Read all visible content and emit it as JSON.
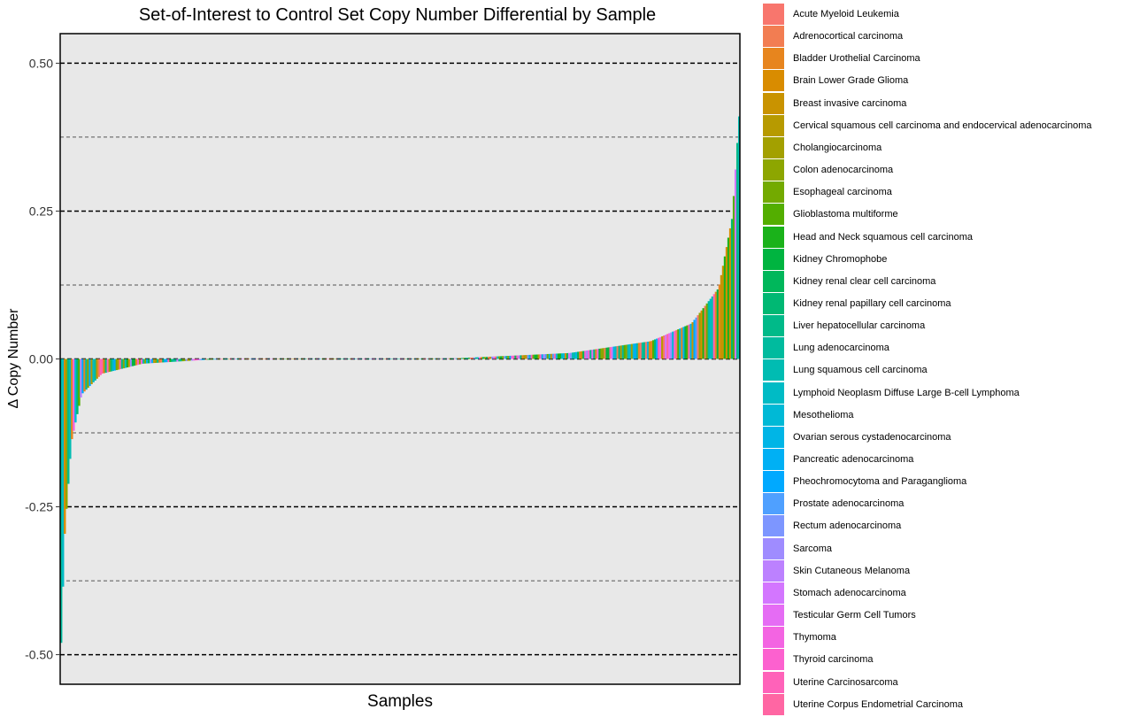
{
  "chart_data": {
    "type": "bar",
    "title": "Set-of-Interest to Control Set Copy Number Differential by Sample",
    "xlabel": "Samples",
    "ylabel": "Δ Copy Number",
    "ylim": [
      -0.55,
      0.55
    ],
    "y_ticks": [
      {
        "value": 0.5,
        "label": "0.50"
      },
      {
        "value": 0.25,
        "label": "0.25"
      },
      {
        "value": 0.0,
        "label": "0.00"
      },
      {
        "value": -0.25,
        "label": "-0.25"
      },
      {
        "value": -0.5,
        "label": "-0.50"
      }
    ],
    "major_reference_lines": [
      0.5,
      0.25,
      0.0,
      -0.25,
      -0.5
    ],
    "minor_reference_lines": [
      0.375,
      0.125,
      -0.125,
      -0.375
    ],
    "x_tick_labels": "none",
    "legend_placement": "right",
    "sample_count": 380,
    "sorted": "ascending",
    "curve_points": [
      {
        "rank_fraction": 0.0,
        "value": -0.48
      },
      {
        "rank_fraction": 0.005,
        "value": -0.3
      },
      {
        "rank_fraction": 0.015,
        "value": -0.14
      },
      {
        "rank_fraction": 0.03,
        "value": -0.06
      },
      {
        "rank_fraction": 0.06,
        "value": -0.025
      },
      {
        "rank_fraction": 0.12,
        "value": -0.008
      },
      {
        "rank_fraction": 0.22,
        "value": -0.001
      },
      {
        "rank_fraction": 0.58,
        "value": 0.001
      },
      {
        "rank_fraction": 0.75,
        "value": 0.01
      },
      {
        "rank_fraction": 0.87,
        "value": 0.03
      },
      {
        "rank_fraction": 0.93,
        "value": 0.06
      },
      {
        "rank_fraction": 0.97,
        "value": 0.12
      },
      {
        "rank_fraction": 0.99,
        "value": 0.24
      },
      {
        "rank_fraction": 1.0,
        "value": 0.41
      }
    ],
    "legend": [
      {
        "name": "Acute Myeloid Leukemia",
        "color": "#F8766D"
      },
      {
        "name": "Adrenocortical carcinoma",
        "color": "#F27D52"
      },
      {
        "name": "Bladder Urothelial Carcinoma",
        "color": "#E7851E"
      },
      {
        "name": "Brain Lower Grade Glioma",
        "color": "#D98C00"
      },
      {
        "name": "Breast invasive carcinoma",
        "color": "#C99300"
      },
      {
        "name": "Cervical squamous cell carcinoma and endocervical adenocarcinoma",
        "color": "#B79A00"
      },
      {
        "name": "Cholangiocarcinoma",
        "color": "#A3A000"
      },
      {
        "name": "Colon adenocarcinoma",
        "color": "#8DA600"
      },
      {
        "name": "Esophageal carcinoma",
        "color": "#73AA00"
      },
      {
        "name": "Glioblastoma multiforme",
        "color": "#53AE00"
      },
      {
        "name": "Head and Neck squamous cell carcinoma",
        "color": "#1AB21A"
      },
      {
        "name": "Kidney Chromophobe",
        "color": "#00B440"
      },
      {
        "name": "Kidney renal clear cell carcinoma",
        "color": "#00B75B"
      },
      {
        "name": "Kidney renal papillary cell carcinoma",
        "color": "#00B873"
      },
      {
        "name": "Liver hepatocellular carcinoma",
        "color": "#00BA89"
      },
      {
        "name": "Lung adenocarcinoma",
        "color": "#00BB9E"
      },
      {
        "name": "Lung squamous cell carcinoma",
        "color": "#00BCB2"
      },
      {
        "name": "Lymphoid Neoplasm Diffuse Large B-cell Lymphoma",
        "color": "#00BBC5"
      },
      {
        "name": "Mesothelioma",
        "color": "#00B9D6"
      },
      {
        "name": "Ovarian serous cystadenocarcinoma",
        "color": "#00B5E6"
      },
      {
        "name": "Pancreatic adenocarcinoma",
        "color": "#00B0F4"
      },
      {
        "name": "Pheochromocytoma and Paraganglioma",
        "color": "#00A9FF"
      },
      {
        "name": "Prostate adenocarcinoma",
        "color": "#4FA0FF"
      },
      {
        "name": "Rectum adenocarcinoma",
        "color": "#7D96FF"
      },
      {
        "name": "Sarcoma",
        "color": "#9F8CFF"
      },
      {
        "name": "Skin Cutaneous Melanoma",
        "color": "#BC81FF"
      },
      {
        "name": "Stomach adenocarcinoma",
        "color": "#D376FF"
      },
      {
        "name": "Testicular Germ Cell Tumors",
        "color": "#E56CF4"
      },
      {
        "name": "Thymoma",
        "color": "#F364E2"
      },
      {
        "name": "Thyroid carcinoma",
        "color": "#FC61CF"
      },
      {
        "name": "Uterine Carcinosarcoma",
        "color": "#FF62B9"
      },
      {
        "name": "Uterine Corpus Endometrial Carcinoma",
        "color": "#FF66A3"
      }
    ],
    "colors": {
      "panel_background": "#E8E8E8",
      "panel_border": "#000000",
      "major_line": "#000000",
      "minor_line": "#555555"
    }
  }
}
